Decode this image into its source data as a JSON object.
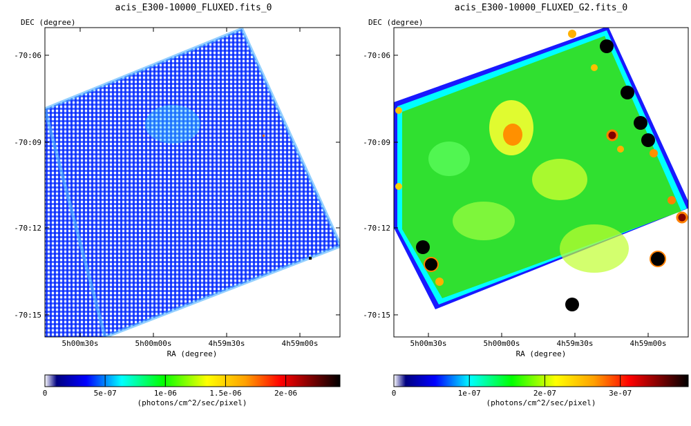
{
  "chart_data": [
    {
      "type": "heatmap",
      "title": "acis_E300-10000_FLUXED.fits_0",
      "xlabel": "RA (degree)",
      "ylabel": "DEC (degree)",
      "x_ticks": [
        "5h00m30s",
        "5h00m00s",
        "4h59m30s",
        "4h59m00s"
      ],
      "y_ticks": [
        "-70:06",
        "-70:09",
        "-70:12",
        "-70:15"
      ],
      "grid": false,
      "colorbar": {
        "label": "(photons/cm^2/sec/pixel)",
        "min": 0,
        "max": 2.45e-06,
        "ticks": [
          {
            "label": "0",
            "value": 0
          },
          {
            "label": "5e-07",
            "value": 5e-07
          },
          {
            "label": "1e-06",
            "value": 1e-06
          },
          {
            "label": "1.5e-06",
            "value": 1.5e-06
          },
          {
            "label": "2e-06",
            "value": 2e-06
          }
        ],
        "colormap": [
          "#000080",
          "#0000ff",
          "#00ffff",
          "#00ff00",
          "#ffff00",
          "#ff8000",
          "#ff0000",
          "#800000",
          "#000000"
        ]
      },
      "image": "sparse, noisy flux map with mostly blue pixels (low flux) on a rotated square footprint",
      "typical_flux": 2e-07
    },
    {
      "type": "heatmap",
      "title": "acis_E300-10000_FLUXED_G2.fits_0",
      "xlabel": "RA (degree)",
      "ylabel": "DEC (degree)",
      "x_ticks": [
        "5h00m30s",
        "5h00m00s",
        "4h59m30s",
        "4h59m00s"
      ],
      "y_ticks": [
        "-70:06",
        "-70:09",
        "-70:12",
        "-70:15"
      ],
      "grid": false,
      "colorbar": {
        "label": "(photons/cm^2/sec/pixel)",
        "min": 0,
        "max": 3.9e-07,
        "ticks": [
          {
            "label": "0",
            "value": 0
          },
          {
            "label": "1e-07",
            "value": 1e-07
          },
          {
            "label": "2e-07",
            "value": 2e-07
          },
          {
            "label": "3e-07",
            "value": 3e-07
          }
        ],
        "colormap": [
          "#000080",
          "#0000ff",
          "#00ffff",
          "#00ff00",
          "#ffff00",
          "#ff8000",
          "#ff0000",
          "#800000",
          "#000000"
        ]
      },
      "image": "smoothed flux map, mostly green with yellow/orange clumps and several black point sources near the edges",
      "typical_flux": 1.2e-07
    }
  ]
}
